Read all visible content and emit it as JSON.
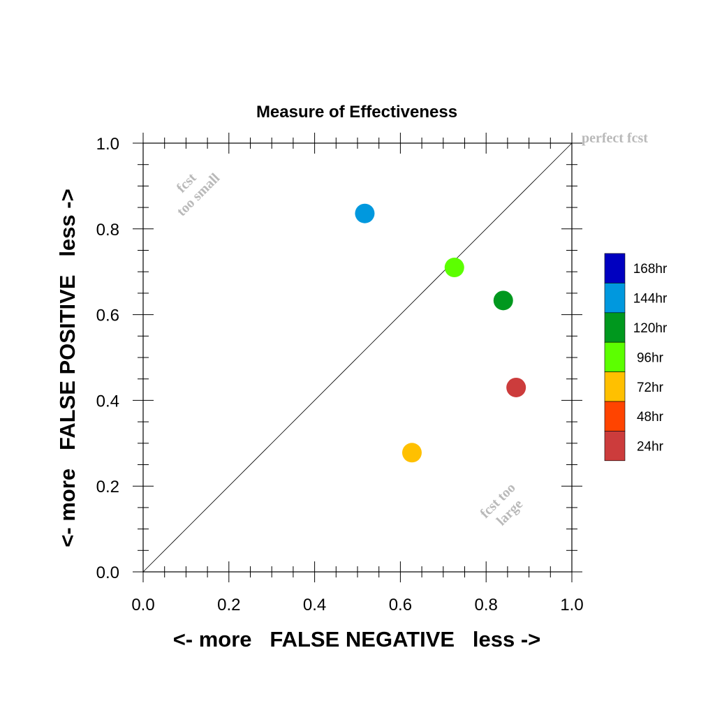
{
  "chart_data": {
    "type": "scatter",
    "title": "Measure of Effectiveness",
    "xlabel": "<- more   FALSE NEGATIVE   less ->",
    "ylabel": "<- more   FALSE POSITIVE   less ->",
    "xlim": [
      0,
      1
    ],
    "ylim": [
      0,
      1
    ],
    "xticks": [
      "0.0",
      "0.2",
      "0.4",
      "0.6",
      "0.8",
      "1.0"
    ],
    "yticks": [
      "0.0",
      "0.2",
      "0.4",
      "0.6",
      "0.8",
      "1.0"
    ],
    "grid": false,
    "legend_position": "right",
    "annotations": {
      "perfect": "perfect fcst",
      "too_small": [
        "fcst",
        "too small"
      ],
      "too_large": [
        "fcst too",
        "large"
      ]
    },
    "legend": [
      {
        "label": "168hr",
        "color": "#0000c0"
      },
      {
        "label": "144hr",
        "color": "#0098de"
      },
      {
        "label": "120hr",
        "color": "#00981e"
      },
      {
        "label": "96hr",
        "color": "#5cff00"
      },
      {
        "label": "72hr",
        "color": "#ffc000"
      },
      {
        "label": "48hr",
        "color": "#ff4400"
      },
      {
        "label": "24hr",
        "color": "#cc3c3c"
      }
    ],
    "points": [
      {
        "series": "144hr",
        "x": 0.517,
        "y": 0.836,
        "color": "#0098de"
      },
      {
        "series": "96hr",
        "x": 0.726,
        "y": 0.71,
        "color": "#5cff00"
      },
      {
        "series": "120hr",
        "x": 0.84,
        "y": 0.633,
        "color": "#00981e"
      },
      {
        "series": "24hr",
        "x": 0.87,
        "y": 0.43,
        "color": "#cc3c3c"
      },
      {
        "series": "72hr",
        "x": 0.627,
        "y": 0.278,
        "color": "#ffc000"
      }
    ]
  }
}
